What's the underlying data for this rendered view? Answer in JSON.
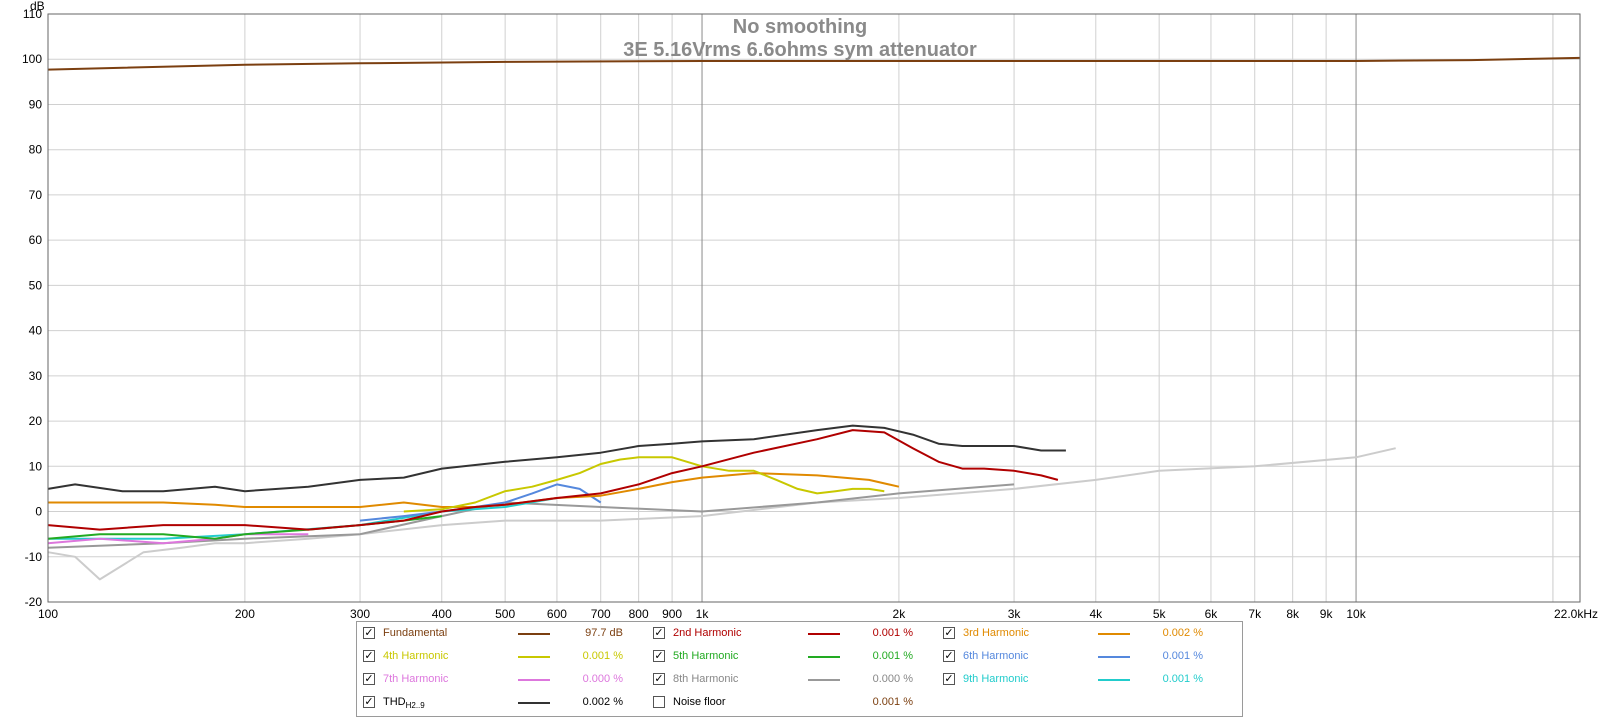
{
  "chart_data": {
    "type": "line",
    "title": "No smoothing",
    "subtitle": "3E 5.16Vrms 6.6ohms sym attenuator",
    "ylabel": "dB",
    "xlabel": "",
    "x_scale": "log",
    "xlim": [
      100,
      22000
    ],
    "ylim": [
      -20,
      110
    ],
    "grid": true,
    "legend_position": "bottom",
    "y_ticks": [
      "-20",
      "-10",
      "0",
      "10",
      "20",
      "30",
      "40",
      "50",
      "60",
      "70",
      "80",
      "90",
      "100",
      "110"
    ],
    "x_ticks": [
      {
        "v": 100,
        "label": "100"
      },
      {
        "v": 200,
        "label": "200"
      },
      {
        "v": 300,
        "label": "300"
      },
      {
        "v": 400,
        "label": "400"
      },
      {
        "v": 500,
        "label": "500"
      },
      {
        "v": 600,
        "label": "600"
      },
      {
        "v": 700,
        "label": "700"
      },
      {
        "v": 800,
        "label": "800"
      },
      {
        "v": 900,
        "label": "900"
      },
      {
        "v": 1000,
        "label": "1k"
      },
      {
        "v": 2000,
        "label": "2k"
      },
      {
        "v": 3000,
        "label": "3k"
      },
      {
        "v": 4000,
        "label": "4k"
      },
      {
        "v": 5000,
        "label": "5k"
      },
      {
        "v": 6000,
        "label": "6k"
      },
      {
        "v": 7000,
        "label": "7k"
      },
      {
        "v": 8000,
        "label": "8k"
      },
      {
        "v": 9000,
        "label": "9k"
      },
      {
        "v": 10000,
        "label": "10k"
      },
      {
        "v": 22000,
        "label": "22.0kHz"
      }
    ],
    "series": [
      {
        "name": "Fundamental",
        "color": "#7b3f10",
        "x": [
          100,
          200,
          300,
          500,
          1000,
          2000,
          5000,
          10000,
          15000,
          22000
        ],
        "y": [
          97.7,
          98.8,
          99.1,
          99.4,
          99.6,
          99.6,
          99.6,
          99.6,
          99.8,
          100.3
        ]
      },
      {
        "name": "THD H2..9",
        "color": "#333333",
        "x": [
          100,
          110,
          130,
          150,
          180,
          200,
          250,
          300,
          350,
          400,
          500,
          600,
          700,
          800,
          900,
          1000,
          1200,
          1500,
          1700,
          1900,
          2100,
          2300,
          2500,
          3000,
          3300,
          3600
        ],
        "y": [
          5,
          6,
          4.5,
          4.5,
          5.5,
          4.5,
          5.5,
          7,
          7.5,
          9.5,
          11,
          12,
          13,
          14.5,
          15,
          15.5,
          16,
          18,
          19,
          18.5,
          17,
          15,
          14.5,
          14.5,
          13.5,
          13.5
        ]
      },
      {
        "name": "2nd Harmonic",
        "color": "#b00000",
        "x": [
          100,
          120,
          150,
          200,
          250,
          300,
          350,
          400,
          450,
          500,
          600,
          700,
          800,
          900,
          1000,
          1200,
          1500,
          1700,
          1900,
          2100,
          2300,
          2500,
          2700,
          3000,
          3300,
          3500
        ],
        "y": [
          -3,
          -4,
          -3,
          -3,
          -4,
          -3,
          -2,
          0,
          1,
          1.5,
          3,
          4,
          6,
          8.5,
          10,
          13,
          16,
          18,
          17.5,
          14,
          11,
          9.5,
          9.5,
          9,
          8,
          7
        ]
      },
      {
        "name": "3rd Harmonic",
        "color": "#e08a00",
        "x": [
          100,
          120,
          150,
          180,
          200,
          250,
          300,
          350,
          400,
          450,
          500,
          600,
          700,
          800,
          900,
          1000,
          1200,
          1500,
          1800,
          2000
        ],
        "y": [
          2,
          2,
          2,
          1.5,
          1,
          1,
          1,
          2,
          1,
          1,
          1.5,
          3,
          3.5,
          5,
          6.5,
          7.5,
          8.5,
          8,
          7,
          5.5
        ]
      },
      {
        "name": "4th Harmonic",
        "color": "#c8c800",
        "x": [
          350,
          400,
          450,
          500,
          550,
          600,
          650,
          700,
          750,
          800,
          900,
          1000,
          1100,
          1200,
          1300,
          1400,
          1500,
          1600,
          1700,
          1800,
          1900
        ],
        "y": [
          0,
          0.5,
          2,
          4.5,
          5.5,
          7,
          8.5,
          10.5,
          11.5,
          12,
          12,
          10,
          9,
          9,
          7,
          5,
          4,
          4.5,
          5,
          5,
          4.5
        ]
      },
      {
        "name": "5th Harmonic",
        "color": "#22aa22",
        "x": [
          100,
          120,
          150,
          180,
          200,
          250,
          300,
          350,
          400
        ],
        "y": [
          -6,
          -5,
          -5,
          -6,
          -5,
          -4,
          -3,
          -2,
          -1
        ]
      },
      {
        "name": "6th Harmonic",
        "color": "#5588dd",
        "x": [
          300,
          350,
          400,
          450,
          500,
          550,
          600,
          650,
          700
        ],
        "y": [
          -2,
          -1,
          0,
          1,
          2,
          4,
          6,
          5,
          2
        ]
      },
      {
        "name": "7th Harmonic",
        "color": "#dd77dd",
        "x": [
          100,
          120,
          150,
          180,
          200,
          250
        ],
        "y": [
          -7,
          -6,
          -7,
          -6,
          -5,
          -5
        ]
      },
      {
        "name": "8th Harmonic",
        "color": "#999999",
        "x": [
          100,
          150,
          200,
          300,
          400,
          500,
          700,
          1000,
          1500,
          2000,
          3000
        ],
        "y": [
          -8,
          -7,
          -6,
          -5,
          -1,
          2,
          1,
          0,
          2,
          4,
          6
        ]
      },
      {
        "name": "9th Harmonic",
        "color": "#22cccc",
        "x": [
          100,
          150,
          200,
          300,
          400,
          500,
          600
        ],
        "y": [
          -6,
          -6,
          -5,
          -3,
          0,
          1,
          3
        ]
      },
      {
        "name": "Noise floor",
        "color": "#cccccc",
        "x": [
          100,
          110,
          120,
          140,
          160,
          180,
          200,
          250,
          300,
          400,
          500,
          700,
          1000,
          1500,
          2000,
          3000,
          4000,
          5000,
          7000,
          10000,
          11500
        ],
        "y": [
          -9,
          -10,
          -15,
          -9,
          -8,
          -7,
          -7,
          -6,
          -5,
          -3,
          -2,
          -2,
          -1,
          2,
          3,
          5,
          7,
          9,
          10,
          12,
          14
        ]
      }
    ]
  },
  "legend": [
    {
      "label": "Fundamental",
      "value": "97.7 dB",
      "color": "#7b3f10",
      "checked": true
    },
    {
      "label": "2nd Harmonic",
      "value": "0.001 %",
      "color": "#b00000",
      "checked": true
    },
    {
      "label": "3rd Harmonic",
      "value": "0.002 %",
      "color": "#e08a00",
      "checked": true
    },
    {
      "label": "4th Harmonic",
      "value": "0.001 %",
      "color": "#c8c800",
      "checked": true
    },
    {
      "label": "5th Harmonic",
      "value": "0.001 %",
      "color": "#22aa22",
      "checked": true
    },
    {
      "label": "6th Harmonic",
      "value": "0.001 %",
      "color": "#5588dd",
      "checked": true
    },
    {
      "label": "7th Harmonic",
      "value": "0.000 %",
      "color": "#dd77dd",
      "checked": true
    },
    {
      "label": "8th Harmonic",
      "value": "0.000 %",
      "color": "#999999",
      "checked": true
    },
    {
      "label": "9th Harmonic",
      "value": "0.001 %",
      "color": "#22cccc",
      "checked": true
    },
    {
      "label": "THD",
      "label_sub": "H2..9",
      "value": "0.002 %",
      "color": "#333333",
      "checked": true
    },
    {
      "label": "Noise floor",
      "value": "0.001 %",
      "color": "#cccccc",
      "checked": false
    }
  ]
}
